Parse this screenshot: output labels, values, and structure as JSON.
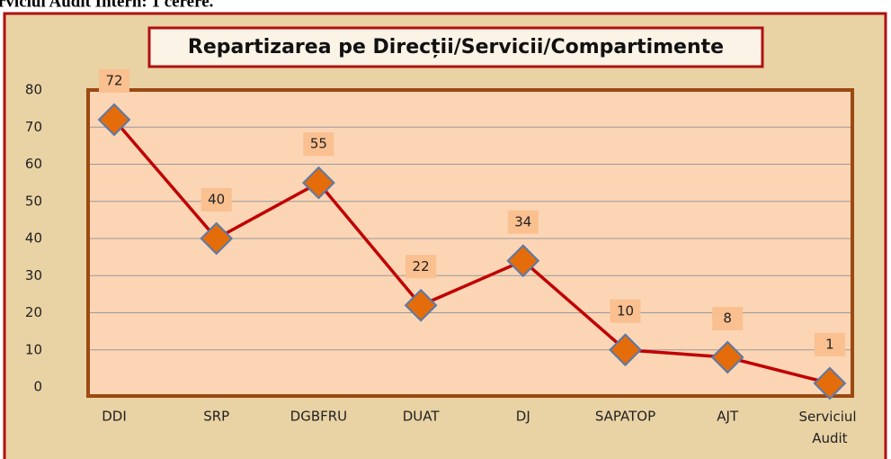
{
  "caption": "rviciul Audit Intern: 1 cerere.",
  "chart_data": {
    "type": "line",
    "title": "Repartizarea pe Direcții/Servicii/Compartimente",
    "categories": [
      "DDI",
      "SRP",
      "DGBFRU",
      "DUAT",
      "DJ",
      "SAPATOP",
      "AJT",
      "Serviciul Audit"
    ],
    "series": [
      {
        "color": "#c00000",
        "marker_color": "#e46c0a",
        "values": [
          72,
          40,
          55,
          22,
          34,
          10,
          8,
          1
        ]
      }
    ],
    "ylim": [
      0,
      80
    ],
    "yticks": [
      0,
      10,
      20,
      30,
      40,
      50,
      60,
      70,
      80
    ],
    "grid": true
  }
}
